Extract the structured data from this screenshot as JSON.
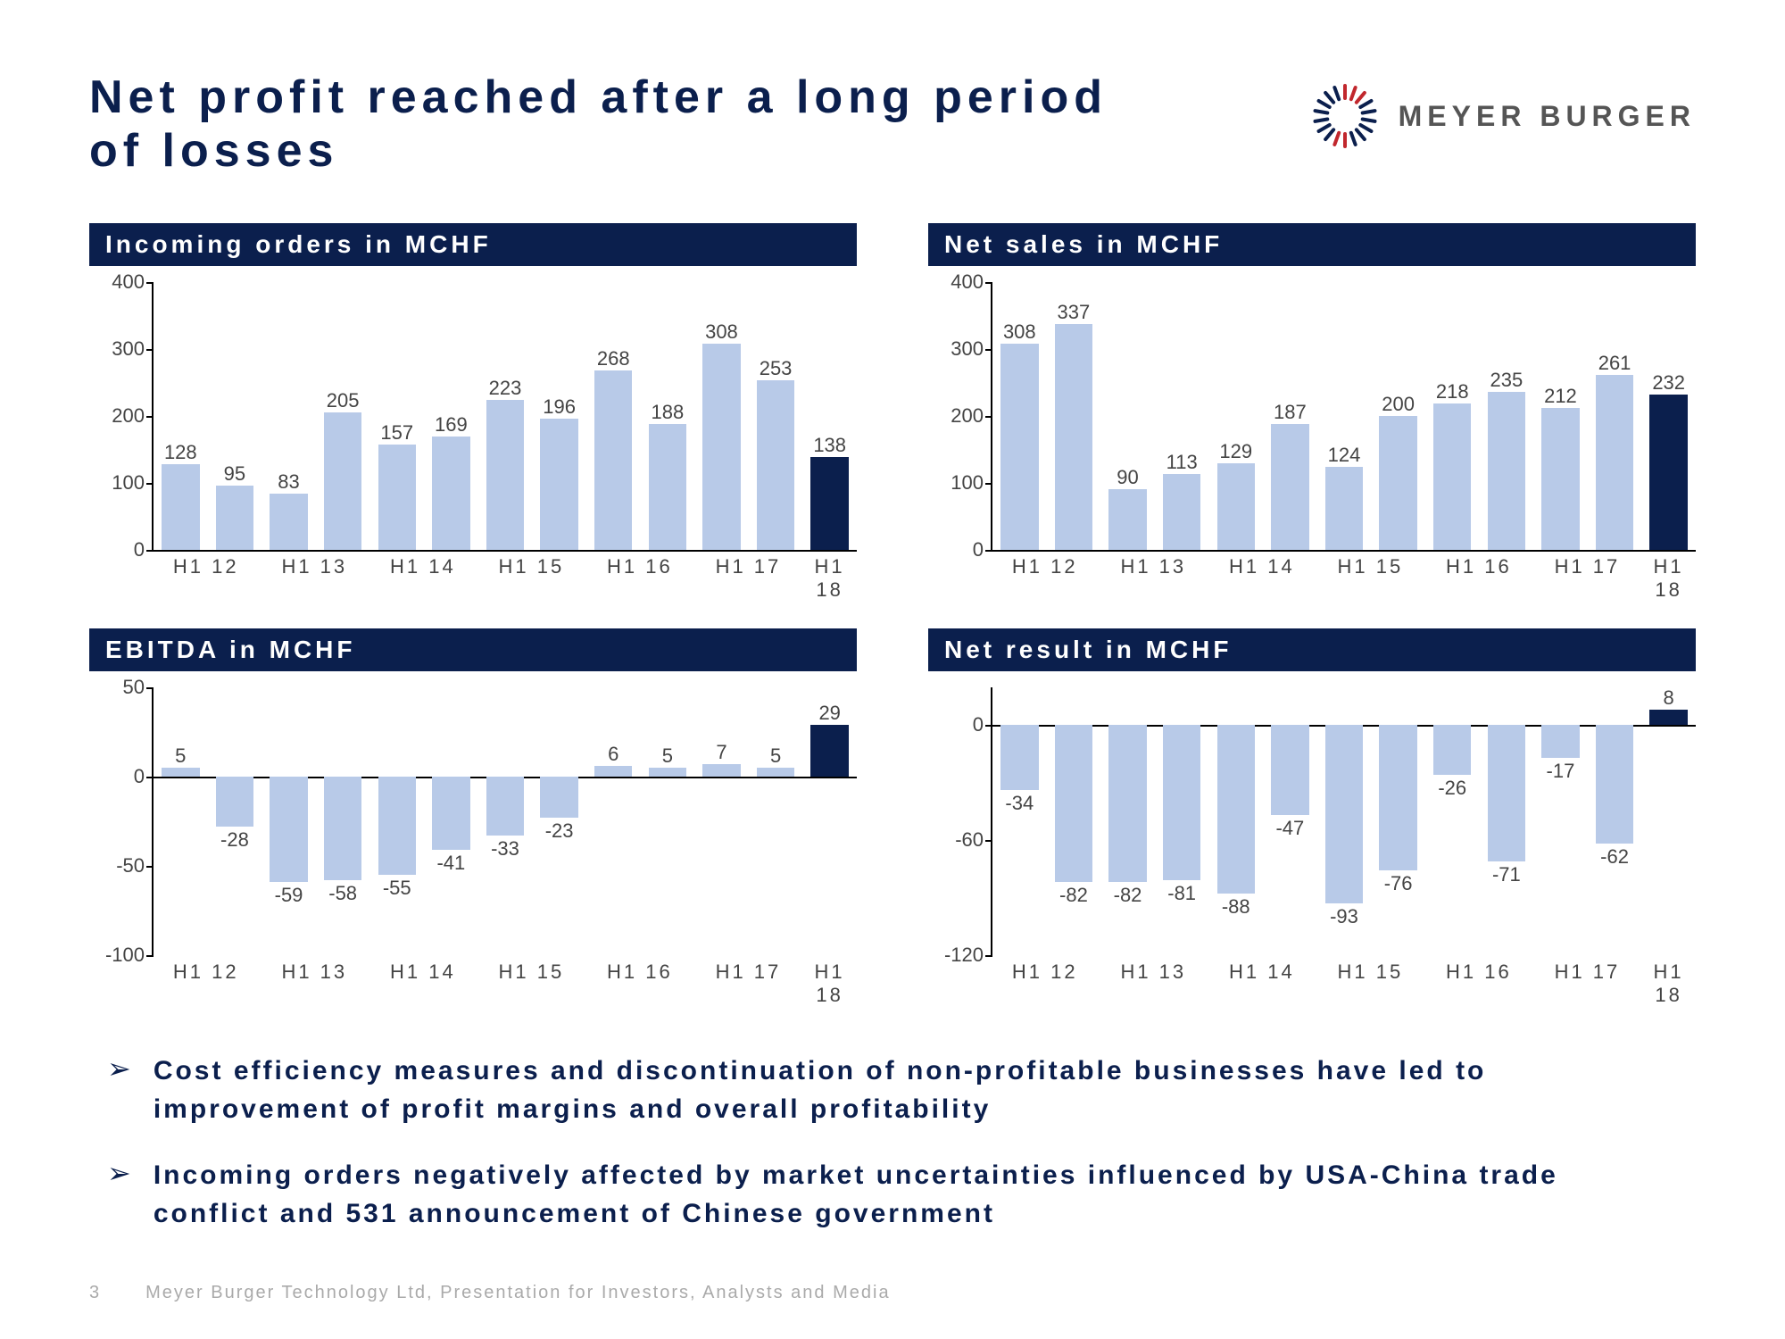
{
  "title": "Net profit reached after a long period of losses",
  "logo_text": "MEYER BURGER",
  "logo_colors_red": "#c1272d",
  "logo_colors_blue": "#0b1f4d",
  "colors": {
    "bar_light": "#b8cae8",
    "bar_dark": "#0b1f4d",
    "header_bg": "#0b1f4d",
    "header_fg": "#ffffff",
    "text": "#444444",
    "title": "#0b1f4d"
  },
  "x_labels": [
    "H1 12",
    "H1 13",
    "H1 14",
    "H1 15",
    "H1 16",
    "H1 17",
    "H1 18"
  ],
  "charts": {
    "incoming_orders": {
      "header": "Incoming orders in MCHF",
      "ymin": 0,
      "ymax": 400,
      "ystep": 100,
      "values": [
        128,
        95,
        83,
        205,
        157,
        169,
        223,
        196,
        268,
        188,
        308,
        253,
        138
      ],
      "highlight_last": true
    },
    "net_sales": {
      "header": "Net sales in MCHF",
      "ymin": 0,
      "ymax": 400,
      "ystep": 100,
      "values": [
        308,
        337,
        90,
        113,
        129,
        187,
        124,
        200,
        218,
        235,
        212,
        261,
        232
      ],
      "highlight_last": true
    },
    "ebitda": {
      "header": "EBITDA in MCHF",
      "ymin": -100,
      "ymax": 50,
      "ystep": 50,
      "values": [
        5,
        -28,
        -59,
        -58,
        -55,
        -41,
        -33,
        -23,
        6,
        5,
        7,
        5,
        29
      ],
      "highlight_last": true
    },
    "net_result": {
      "header": "Net result in MCHF",
      "ymin": -120,
      "ymax": 20,
      "ystep": 60,
      "yticks": [
        0,
        -60,
        -120
      ],
      "values": [
        -34,
        -82,
        -82,
        -81,
        -88,
        -47,
        -93,
        -76,
        -26,
        -71,
        -17,
        -62,
        8
      ],
      "highlight_last": true
    }
  },
  "bullets": [
    "Cost efficiency measures and discontinuation of non-profitable businesses have led to improvement of profit margins and overall profitability",
    "Incoming orders negatively affected by market uncertainties influenced by USA-China trade conflict and 531 announcement of Chinese government"
  ],
  "footer": {
    "page": "3",
    "text": "Meyer Burger Technology Ltd, Presentation for Investors, Analysts and Media"
  }
}
